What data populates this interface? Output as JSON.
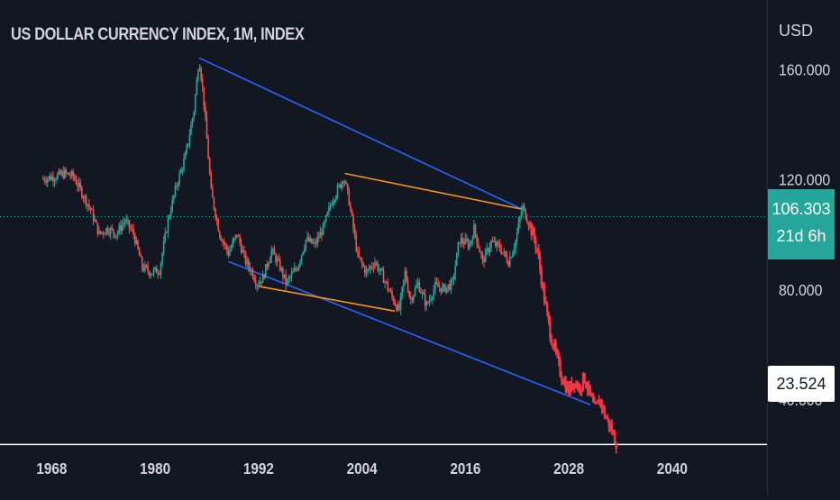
{
  "header": {
    "title": "US DOLLAR CURRENCY INDEX, 1M, INDEX",
    "currency": "USD"
  },
  "price_axis": {
    "current_price": "106.303",
    "countdown": "21d 6h",
    "target_price": "23.524"
  },
  "colors": {
    "background": "#131722",
    "up_candle": "#26a69a",
    "down_candle": "#ef5350",
    "projection": "#f23645",
    "channel_outer": "#2962ff",
    "channel_inner": "#f7931a",
    "price_line": "#26a69a",
    "target_line": "#ffffff"
  },
  "chart_data": {
    "type": "line",
    "title": "US DOLLAR CURRENCY INDEX, 1M, INDEX",
    "xlabel": "",
    "ylabel": "",
    "x_ticks": [
      1968,
      1980,
      1992,
      2004,
      2016,
      2028,
      2040
    ],
    "y_ticks": [
      "40.000",
      "80.000",
      "120.000",
      "160.000"
    ],
    "xlim": [
      1962,
      2051
    ],
    "ylim": [
      5,
      185
    ],
    "grid": false,
    "series": [
      {
        "kind": "history",
        "points": [
          [
            1967,
            120
          ],
          [
            1968.5,
            121
          ],
          [
            1969.5,
            122
          ],
          [
            1970.5,
            121
          ],
          [
            1971.5,
            115
          ],
          [
            1972.5,
            109
          ],
          [
            1973.5,
            100
          ],
          [
            1974.5,
            102
          ],
          [
            1975.5,
            100
          ],
          [
            1976.5,
            105
          ],
          [
            1977.5,
            100
          ],
          [
            1978.5,
            88
          ],
          [
            1979.5,
            86
          ],
          [
            1980.5,
            87
          ],
          [
            1981.5,
            105
          ],
          [
            1982.5,
            118
          ],
          [
            1983.5,
            128
          ],
          [
            1984.5,
            145
          ],
          [
            1985.1,
            164
          ],
          [
            1985.6,
            150
          ],
          [
            1986.5,
            115
          ],
          [
            1987.5,
            100
          ],
          [
            1988.5,
            93
          ],
          [
            1989.5,
            100
          ],
          [
            1990.5,
            90
          ],
          [
            1991.3,
            86
          ],
          [
            1991.8,
            82
          ],
          [
            1992.5,
            84
          ],
          [
            1993.5,
            94
          ],
          [
            1994.5,
            88
          ],
          [
            1995.2,
            82
          ],
          [
            1996.5,
            88
          ],
          [
            1997.5,
            98
          ],
          [
            1998.5,
            96
          ],
          [
            1999.5,
            102
          ],
          [
            2000.5,
            112
          ],
          [
            2001.5,
            118
          ],
          [
            2001.9,
            121
          ],
          [
            2002.5,
            112
          ],
          [
            2003.5,
            92
          ],
          [
            2004.5,
            86
          ],
          [
            2005.5,
            90
          ],
          [
            2006.5,
            84
          ],
          [
            2007.5,
            77
          ],
          [
            2008.3,
            72
          ],
          [
            2009.0,
            86
          ],
          [
            2009.6,
            76
          ],
          [
            2010.5,
            82
          ],
          [
            2011.5,
            74
          ],
          [
            2012.5,
            81
          ],
          [
            2013.5,
            80
          ],
          [
            2014.5,
            82
          ],
          [
            2015.3,
            98
          ],
          [
            2016.5,
            96
          ],
          [
            2017.0,
            102
          ],
          [
            2018.0,
            90
          ],
          [
            2019.0,
            97
          ],
          [
            2020.0,
            95
          ],
          [
            2021.0,
            90
          ],
          [
            2021.8,
            97
          ],
          [
            2022.6,
            110
          ],
          [
            2023.5,
            103
          ]
        ]
      },
      {
        "kind": "projection",
        "points": [
          [
            2023.5,
            103
          ],
          [
            2024.3,
            95
          ],
          [
            2025.0,
            80
          ],
          [
            2025.5,
            70
          ],
          [
            2026.0,
            62
          ],
          [
            2026.5,
            56
          ],
          [
            2027.0,
            50
          ],
          [
            2027.5,
            46
          ],
          [
            2028.0,
            43
          ],
          [
            2028.6,
            47
          ],
          [
            2029.2,
            44
          ],
          [
            2029.8,
            48
          ],
          [
            2030.4,
            42
          ],
          [
            2031.0,
            36
          ],
          [
            2031.6,
            40
          ],
          [
            2032.2,
            34
          ],
          [
            2032.8,
            30
          ],
          [
            2033.3,
            26
          ],
          [
            2033.6,
            23.5
          ]
        ]
      }
    ],
    "trend_lines": [
      {
        "name": "outer-upper",
        "x1": 1985.1,
        "y1": 164,
        "x2": 2022.6,
        "y2": 109
      },
      {
        "name": "outer-lower",
        "x1": 1988.5,
        "y1": 90,
        "x2": 2030.5,
        "y2": 38
      },
      {
        "name": "inner-upper",
        "x1": 2002.0,
        "y1": 122,
        "x2": 2022.6,
        "y2": 109
      },
      {
        "name": "inner-lower",
        "x1": 1992.0,
        "y1": 81,
        "x2": 2007.8,
        "y2": 72
      }
    ],
    "current_price": 106.303,
    "target_price": 23.524
  }
}
